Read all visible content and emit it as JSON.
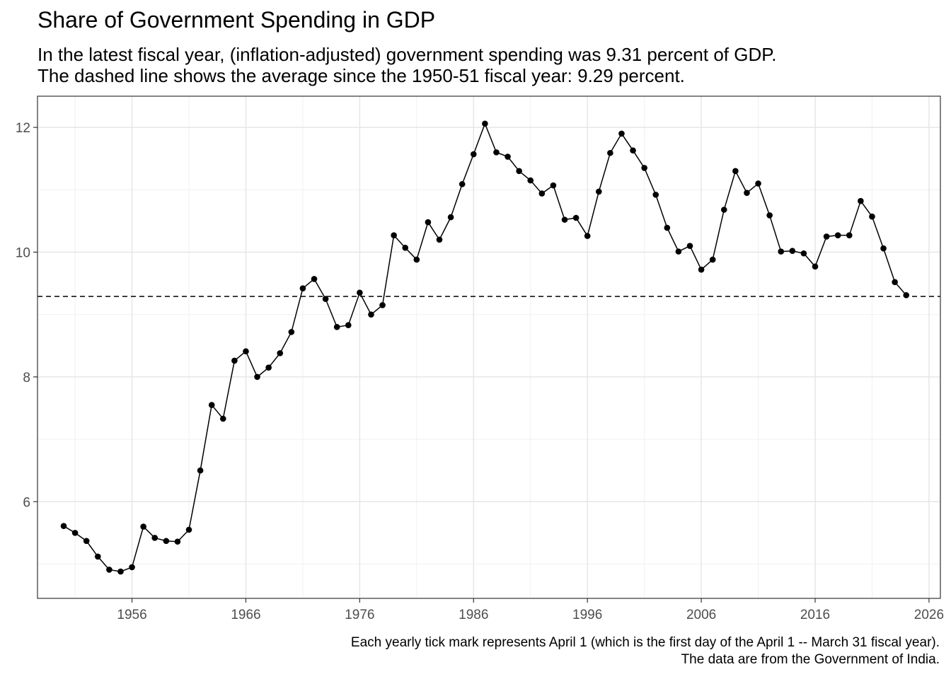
{
  "title": "Share of Government Spending in GDP",
  "subtitle_lines": [
    "In the latest fiscal year, (inflation-adjusted) government spending was 9.31 percent of GDP.",
    "The dashed line shows the average since the 1950-51 fiscal year: 9.29 percent."
  ],
  "caption_lines": [
    "Each yearly tick mark represents April 1 (which is the first day of the April 1 -- March 31 fiscal year).",
    "The data are from the Government of India."
  ],
  "chart_data": {
    "type": "line",
    "title": "Share of Government Spending in GDP",
    "xlabel": "",
    "ylabel": "",
    "x_ticks": [
      "1956",
      "1966",
      "1976",
      "1986",
      "1996",
      "2006",
      "2016",
      "2026"
    ],
    "y_ticks": [
      "6",
      "8",
      "10",
      "12"
    ],
    "xlim": [
      1947.7,
      2027.0
    ],
    "ylim": [
      4.45,
      12.5
    ],
    "grid": true,
    "reference_line": {
      "value": 9.29,
      "style": "dashed"
    },
    "series": [
      {
        "markers": true,
        "color": "#000000",
        "points": [
          [
            1950,
            5.61
          ],
          [
            1951,
            5.5
          ],
          [
            1952,
            5.37
          ],
          [
            1953,
            5.12
          ],
          [
            1954,
            4.91
          ],
          [
            1955,
            4.88
          ],
          [
            1956,
            4.95
          ],
          [
            1957,
            5.6
          ],
          [
            1958,
            5.42
          ],
          [
            1959,
            5.37
          ],
          [
            1960,
            5.36
          ],
          [
            1961,
            5.55
          ],
          [
            1962,
            6.5
          ],
          [
            1963,
            7.55
          ],
          [
            1964,
            7.33
          ],
          [
            1965,
            8.26
          ],
          [
            1966,
            8.41
          ],
          [
            1967,
            8.0
          ],
          [
            1968,
            8.15
          ],
          [
            1969,
            8.38
          ],
          [
            1970,
            8.72
          ],
          [
            1971,
            9.42
          ],
          [
            1972,
            9.57
          ],
          [
            1973,
            9.25
          ],
          [
            1974,
            8.8
          ],
          [
            1975,
            8.83
          ],
          [
            1976,
            9.35
          ],
          [
            1977,
            9.0
          ],
          [
            1978,
            9.15
          ],
          [
            1979,
            10.27
          ],
          [
            1980,
            10.07
          ],
          [
            1981,
            9.88
          ],
          [
            1982,
            10.48
          ],
          [
            1983,
            10.2
          ],
          [
            1984,
            10.56
          ],
          [
            1985,
            11.09
          ],
          [
            1986,
            11.57
          ],
          [
            1987,
            12.06
          ],
          [
            1988,
            11.6
          ],
          [
            1989,
            11.53
          ],
          [
            1990,
            11.3
          ],
          [
            1991,
            11.15
          ],
          [
            1992,
            10.94
          ],
          [
            1993,
            11.07
          ],
          [
            1994,
            10.52
          ],
          [
            1995,
            10.55
          ],
          [
            1996,
            10.26
          ],
          [
            1997,
            10.97
          ],
          [
            1998,
            11.59
          ],
          [
            1999,
            11.9
          ],
          [
            2000,
            11.63
          ],
          [
            2001,
            11.35
          ],
          [
            2002,
            10.92
          ],
          [
            2003,
            10.39
          ],
          [
            2004,
            10.01
          ],
          [
            2005,
            10.1
          ],
          [
            2006,
            9.72
          ],
          [
            2007,
            9.88
          ],
          [
            2008,
            10.68
          ],
          [
            2009,
            11.3
          ],
          [
            2010,
            10.95
          ],
          [
            2011,
            11.1
          ],
          [
            2012,
            10.59
          ],
          [
            2013,
            10.01
          ],
          [
            2014,
            10.02
          ],
          [
            2015,
            9.98
          ],
          [
            2016,
            9.77
          ],
          [
            2017,
            10.25
          ],
          [
            2018,
            10.27
          ],
          [
            2019,
            10.27
          ],
          [
            2020,
            10.82
          ],
          [
            2021,
            10.57
          ],
          [
            2022,
            10.06
          ],
          [
            2023,
            9.52
          ],
          [
            2024,
            9.31
          ]
        ]
      }
    ]
  }
}
